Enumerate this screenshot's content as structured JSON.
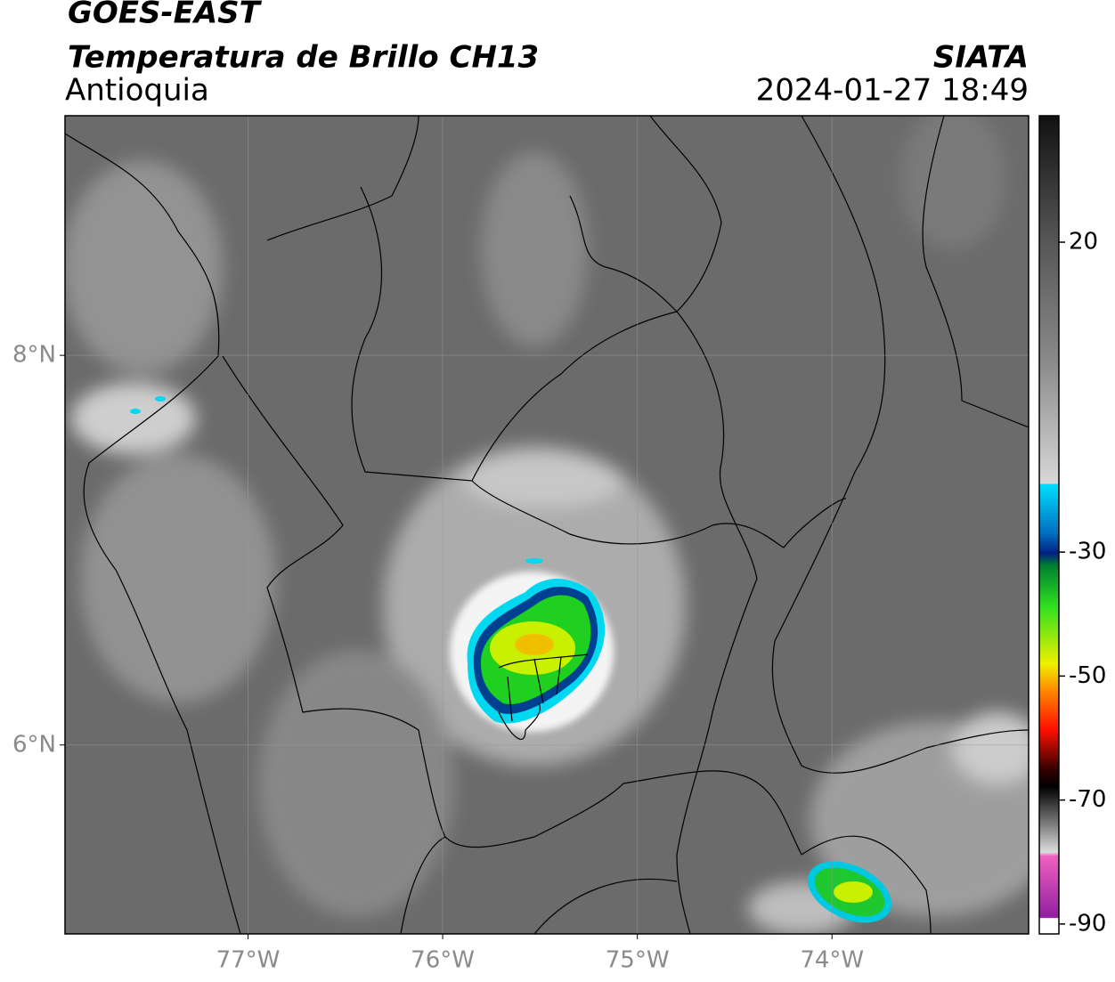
{
  "header": {
    "title": "GOES-EAST",
    "subtitle": "Temperatura de Brillo CH13",
    "region": "Antioquia",
    "source": "SIATA",
    "datetime": "2024-01-27 18:49"
  },
  "map": {
    "lon_range": [
      -77.94,
      -72.99
    ],
    "lat_range": [
      5.03,
      9.23
    ],
    "lon_ticks": [
      {
        "value": -77,
        "label": "77°W"
      },
      {
        "value": -76,
        "label": "76°W"
      },
      {
        "value": -75,
        "label": "75°W"
      },
      {
        "value": -74,
        "label": "74°W"
      }
    ],
    "lat_ticks": [
      {
        "value": 6,
        "label": "6°N"
      },
      {
        "value": 8,
        "label": "8°N"
      }
    ]
  },
  "colorbar": {
    "range": [
      -91.6,
      40.4
    ],
    "ticks": [
      20,
      -30,
      -50,
      -70,
      -90
    ]
  }
}
